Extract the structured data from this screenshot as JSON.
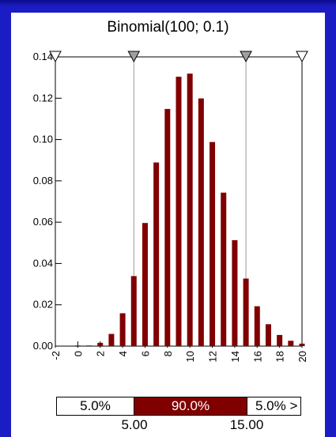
{
  "chart_data": {
    "type": "bar",
    "title": "Binomial(100; 0.1)",
    "xlabel": "",
    "ylabel": "",
    "x": [
      0,
      1,
      2,
      3,
      4,
      5,
      6,
      7,
      8,
      9,
      10,
      11,
      12,
      13,
      14,
      15,
      16,
      17,
      18,
      19,
      20
    ],
    "values": [
      3e-05,
      0.0003,
      0.0016,
      0.0059,
      0.0159,
      0.0339,
      0.0596,
      0.0889,
      0.1148,
      0.1304,
      0.1319,
      0.1199,
      0.0988,
      0.0743,
      0.0513,
      0.0327,
      0.0193,
      0.0106,
      0.0054,
      0.0026,
      0.0012
    ],
    "xlim": [
      -2,
      20
    ],
    "ylim": [
      0,
      0.14
    ],
    "x_ticks": [
      "-2",
      "0",
      "2",
      "4",
      "6",
      "8",
      "10",
      "12",
      "14",
      "16",
      "18",
      "20"
    ],
    "y_ticks": [
      "0.00",
      "0.02",
      "0.04",
      "0.06",
      "0.08",
      "0.10",
      "0.12",
      "0.14"
    ],
    "bar_color": "#800000",
    "markers": [
      -2,
      5,
      15,
      20
    ],
    "marker_fill": [
      "#ffffff",
      "#a0a0a0",
      "#a0a0a0",
      "#ffffff"
    ],
    "delimiters": [
      5,
      15
    ]
  },
  "percentiles": {
    "left": "5.0%",
    "middle": "90.0%",
    "right": "5.0% >"
  },
  "limits": {
    "lower": "5.00",
    "upper": "15.00"
  },
  "colors": {
    "background": "#1c1cc4",
    "bar": "#800000"
  }
}
